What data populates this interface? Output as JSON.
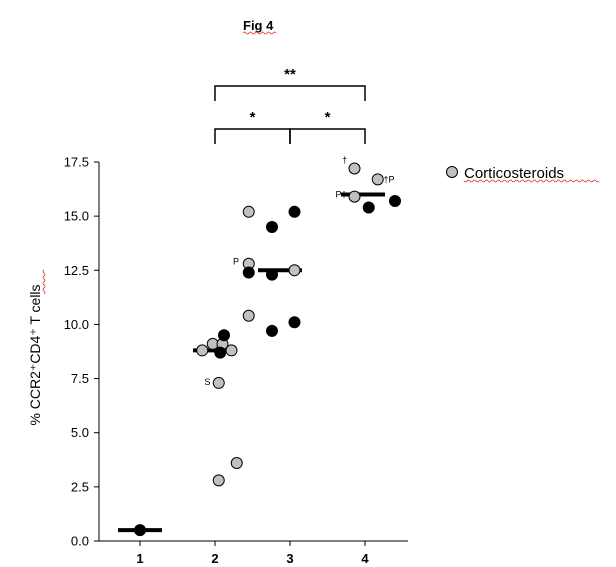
{
  "chart_data": {
    "type": "scatter",
    "title": "Fig 4",
    "ylabel": "% CCR2⁺CD4⁺ T cells",
    "ylim": [
      0,
      17.5
    ],
    "yticks": [
      "0.0",
      "2.5",
      "5.0",
      "7.5",
      "10.0",
      "12.5",
      "15.0",
      "17.5"
    ],
    "categories": [
      "1",
      "2",
      "3",
      "4"
    ],
    "legend": {
      "label": "Corticosteroids",
      "color": "#c0c0c0",
      "position": "top-right"
    },
    "colors": {
      "corticosteroids": "#c0c0c0",
      "untreated": "#000000"
    },
    "points": [
      {
        "group": 1,
        "offset": 0.0,
        "y": 0.5,
        "filled": true
      },
      {
        "group": 2,
        "offset": -0.17,
        "y": 8.8,
        "filled": false
      },
      {
        "group": 2,
        "offset": -0.03,
        "y": 9.1,
        "filled": false
      },
      {
        "group": 2,
        "offset": 0.1,
        "y": 9.1,
        "filled": false
      },
      {
        "group": 2,
        "offset": 0.22,
        "y": 8.8,
        "filled": false
      },
      {
        "group": 2,
        "offset": 0.12,
        "y": 9.5,
        "filled": true
      },
      {
        "group": 2,
        "offset": 0.07,
        "y": 8.7,
        "filled": true
      },
      {
        "group": 2,
        "offset": 0.05,
        "y": 7.3,
        "filled": false
      },
      {
        "group": 2,
        "offset": 0.05,
        "y": 2.8,
        "filled": false
      },
      {
        "group": 2,
        "offset": 0.29,
        "y": 3.6,
        "filled": false
      },
      {
        "group": 3,
        "offset": -0.55,
        "y": 15.2,
        "filled": false
      },
      {
        "group": 3,
        "offset": -0.55,
        "y": 12.8,
        "filled": false
      },
      {
        "group": 3,
        "offset": -0.55,
        "y": 12.4,
        "filled": true
      },
      {
        "group": 3,
        "offset": -0.24,
        "y": 12.3,
        "filled": true
      },
      {
        "group": 3,
        "offset": 0.06,
        "y": 12.5,
        "filled": false
      },
      {
        "group": 3,
        "offset": -0.55,
        "y": 10.4,
        "filled": false
      },
      {
        "group": 3,
        "offset": -0.24,
        "y": 14.5,
        "filled": true
      },
      {
        "group": 3,
        "offset": 0.06,
        "y": 15.2,
        "filled": true
      },
      {
        "group": 3,
        "offset": -0.24,
        "y": 9.7,
        "filled": true
      },
      {
        "group": 3,
        "offset": 0.06,
        "y": 10.1,
        "filled": true
      },
      {
        "group": 4,
        "offset": -0.14,
        "y": 17.2,
        "filled": false
      },
      {
        "group": 4,
        "offset": -0.14,
        "y": 15.9,
        "filled": false
      },
      {
        "group": 4,
        "offset": 0.17,
        "y": 16.7,
        "filled": false
      },
      {
        "group": 4,
        "offset": 0.05,
        "y": 15.4,
        "filled": true
      },
      {
        "group": 4,
        "offset": 0.4,
        "y": 15.7,
        "filled": true
      }
    ],
    "medians": [
      {
        "group": 1,
        "value": 0.5
      },
      {
        "group": 2,
        "value": 8.8
      },
      {
        "group": 3,
        "value": 12.5
      },
      {
        "group": 4,
        "value": 16.0
      }
    ],
    "point_annotations": [
      {
        "text": "S",
        "group": 2,
        "offset": -0.1,
        "y": 7.35
      },
      {
        "text": "P",
        "group": 3,
        "offset": -0.72,
        "y": 12.9
      },
      {
        "text": "†",
        "group": 4,
        "offset": -0.27,
        "y": 17.6
      },
      {
        "text": "P†",
        "group": 4,
        "offset": -0.32,
        "y": 16.0
      },
      {
        "text": "†P",
        "group": 4,
        "offset": 0.32,
        "y": 16.7
      }
    ],
    "significance": [
      {
        "from": 2,
        "to": 4,
        "label": "**"
      },
      {
        "from": 2,
        "to": 3,
        "label": "*"
      },
      {
        "from": 3,
        "to": 4,
        "label": "*"
      }
    ]
  }
}
